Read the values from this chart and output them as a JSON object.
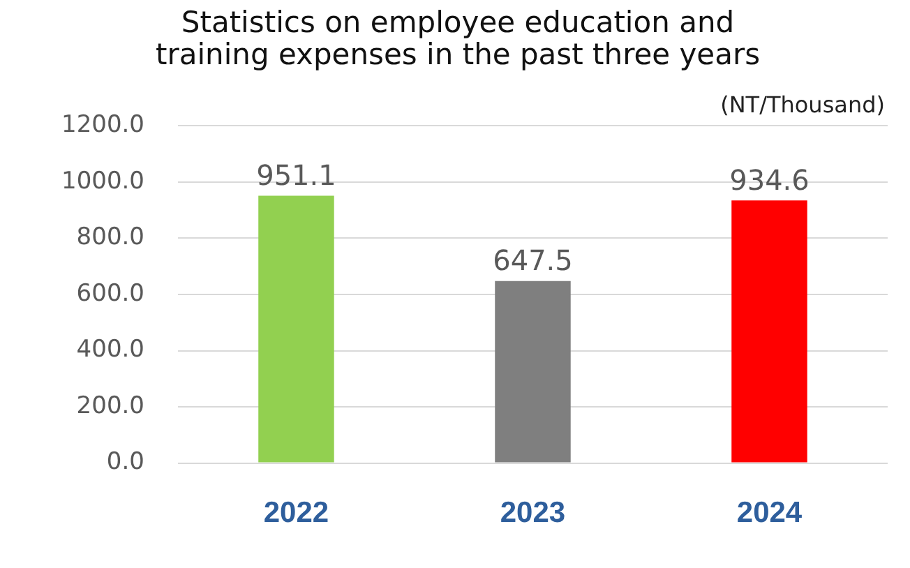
{
  "chart_data": {
    "type": "bar",
    "title": "Statistics on employee education and training expenses in the past three years",
    "annotations": [
      "(NT/Thousand)"
    ],
    "categories": [
      "2022",
      "2023",
      "2024"
    ],
    "values": [
      951.1,
      647.5,
      934.6
    ],
    "colors": [
      "#92d050",
      "#7f7f7f",
      "#ff0000"
    ],
    "ylim": [
      0,
      1200
    ],
    "yticks": [
      {
        "value": 0,
        "label": "0.0"
      },
      {
        "value": 200,
        "label": "200.0"
      },
      {
        "value": 400,
        "label": "400.0"
      },
      {
        "value": 600,
        "label": "600.0"
      },
      {
        "value": 800,
        "label": "800.0"
      },
      {
        "value": 1000,
        "label": "1000.0"
      },
      {
        "value": 1200,
        "label": "1200.0"
      }
    ],
    "grid": "y",
    "data_labels": true,
    "legend": false
  }
}
